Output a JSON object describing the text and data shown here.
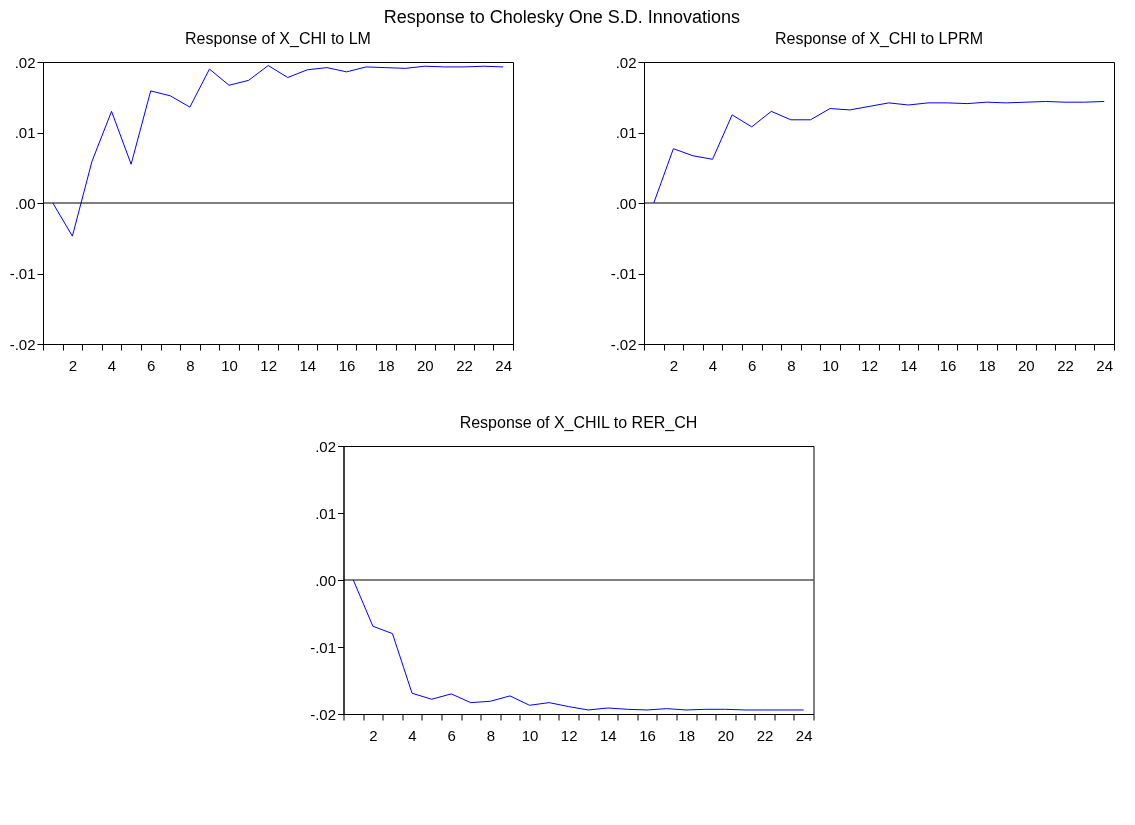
{
  "chart_data": [
    {
      "type": "line",
      "title": "Response of X_CHI to LM",
      "annotations": [
        "Response to Cholesky One S.D. Innovations"
      ],
      "x": [
        1,
        2,
        3,
        4,
        5,
        6,
        7,
        8,
        9,
        10,
        11,
        12,
        13,
        14,
        15,
        16,
        17,
        18,
        19,
        20,
        21,
        22,
        23,
        24
      ],
      "series": [
        {
          "color": "#0000ff",
          "values": [
            0,
            -0.0047,
            0.0059,
            0.013,
            0.0055,
            0.0159,
            0.0152,
            0.0136,
            0.019,
            0.0167,
            0.0174,
            0.0195,
            0.0178,
            0.0189,
            0.0192,
            0.0186,
            0.0193,
            0.0192,
            0.0191,
            0.0194,
            0.0193,
            0.0193,
            0.0194,
            0.0193
          ]
        }
      ],
      "xlim": [
        0.5,
        24.5
      ],
      "xticks": [
        {
          "value": 0.5,
          "label": null
        },
        {
          "value": 1.5,
          "label": null
        },
        2,
        {
          "value": 2.5,
          "label": null
        },
        {
          "value": 3.5,
          "label": null
        },
        4,
        {
          "value": 4.5,
          "label": null
        },
        {
          "value": 5.5,
          "label": null
        },
        6,
        {
          "value": 6.5,
          "label": null
        },
        {
          "value": 7.5,
          "label": null
        },
        8,
        {
          "value": 8.5,
          "label": null
        },
        {
          "value": 9.5,
          "label": null
        },
        10,
        {
          "value": 10.5,
          "label": null
        },
        {
          "value": 11.5,
          "label": null
        },
        12,
        {
          "value": 12.5,
          "label": null
        },
        {
          "value": 13.5,
          "label": null
        },
        14,
        {
          "value": 14.5,
          "label": null
        },
        {
          "value": 15.5,
          "label": null
        },
        16,
        {
          "value": 16.5,
          "label": null
        },
        {
          "value": 17.5,
          "label": null
        },
        18,
        {
          "value": 18.5,
          "label": null
        },
        {
          "value": 19.5,
          "label": null
        },
        20,
        {
          "value": 20.5,
          "label": null
        },
        {
          "value": 21.5,
          "label": null
        },
        22,
        {
          "value": 22.5,
          "label": null
        },
        {
          "value": 23.5,
          "label": null
        },
        24,
        {
          "value": 24.5,
          "label": null
        }
      ],
      "ylim": [
        -0.02,
        0.02
      ],
      "yticks": [
        {
          "value": -0.02,
          "label": "-.02"
        },
        {
          "value": -0.01,
          "label": "-.01"
        },
        {
          "value": 0,
          "label": ".00"
        },
        {
          "value": 0.01,
          "label": ".01"
        },
        {
          "value": 0.02,
          "label": ".02"
        }
      ],
      "ref_lines": [
        {
          "axis": "y",
          "value": 0,
          "color": "#000000"
        }
      ],
      "grid": false,
      "line_style": "solid",
      "marker": "none"
    },
    {
      "type": "line",
      "title": "Response of X_CHI to LPRM",
      "x": [
        1,
        2,
        3,
        4,
        5,
        6,
        7,
        8,
        9,
        10,
        11,
        12,
        13,
        14,
        15,
        16,
        17,
        18,
        19,
        20,
        21,
        22,
        23,
        24
      ],
      "series": [
        {
          "color": "#0000ff",
          "values": [
            0,
            0.0077,
            0.0067,
            0.0062,
            0.0125,
            0.0108,
            0.013,
            0.0118,
            0.0118,
            0.0134,
            0.0132,
            0.0137,
            0.0142,
            0.0139,
            0.0142,
            0.0142,
            0.0141,
            0.0143,
            0.0142,
            0.0143,
            0.0144,
            0.0143,
            0.0143,
            0.0144
          ]
        }
      ],
      "xlim": [
        0.5,
        24.5
      ],
      "xticks": [
        {
          "value": 0.5,
          "label": null
        },
        {
          "value": 1.5,
          "label": null
        },
        2,
        {
          "value": 2.5,
          "label": null
        },
        {
          "value": 3.5,
          "label": null
        },
        4,
        {
          "value": 4.5,
          "label": null
        },
        {
          "value": 5.5,
          "label": null
        },
        6,
        {
          "value": 6.5,
          "label": null
        },
        {
          "value": 7.5,
          "label": null
        },
        8,
        {
          "value": 8.5,
          "label": null
        },
        {
          "value": 9.5,
          "label": null
        },
        10,
        {
          "value": 10.5,
          "label": null
        },
        {
          "value": 11.5,
          "label": null
        },
        12,
        {
          "value": 12.5,
          "label": null
        },
        {
          "value": 13.5,
          "label": null
        },
        14,
        {
          "value": 14.5,
          "label": null
        },
        {
          "value": 15.5,
          "label": null
        },
        16,
        {
          "value": 16.5,
          "label": null
        },
        {
          "value": 17.5,
          "label": null
        },
        18,
        {
          "value": 18.5,
          "label": null
        },
        {
          "value": 19.5,
          "label": null
        },
        20,
        {
          "value": 20.5,
          "label": null
        },
        {
          "value": 21.5,
          "label": null
        },
        22,
        {
          "value": 22.5,
          "label": null
        },
        {
          "value": 23.5,
          "label": null
        },
        24,
        {
          "value": 24.5,
          "label": null
        }
      ],
      "ylim": [
        -0.02,
        0.02
      ],
      "yticks": [
        {
          "value": -0.02,
          "label": "-.02"
        },
        {
          "value": -0.01,
          "label": "-.01"
        },
        {
          "value": 0,
          "label": ".00"
        },
        {
          "value": 0.01,
          "label": ".01"
        },
        {
          "value": 0.02,
          "label": ".02"
        }
      ],
      "ref_lines": [
        {
          "axis": "y",
          "value": 0,
          "color": "#000000"
        }
      ],
      "grid": false,
      "line_style": "solid",
      "marker": "none"
    },
    {
      "type": "line",
      "title": "Response of X_CHIL  to RER_CH",
      "x": [
        1,
        2,
        3,
        4,
        5,
        6,
        7,
        8,
        9,
        10,
        11,
        12,
        13,
        14,
        15,
        16,
        17,
        18,
        19,
        20,
        21,
        22,
        23,
        24
      ],
      "series": [
        {
          "color": "#0000ff",
          "values": [
            0,
            -0.0069,
            -0.008,
            -0.0169,
            -0.0178,
            -0.017,
            -0.0183,
            -0.0181,
            -0.0173,
            -0.0187,
            -0.0183,
            -0.0189,
            -0.0194,
            -0.0191,
            -0.0193,
            -0.0194,
            -0.0192,
            -0.0194,
            -0.0193,
            -0.0193,
            -0.0194,
            -0.0194,
            -0.0194,
            -0.0194
          ]
        }
      ],
      "xlim": [
        0.5,
        24.5
      ],
      "xticks": [
        {
          "value": 0.5,
          "label": null
        },
        {
          "value": 1.5,
          "label": null
        },
        2,
        {
          "value": 2.5,
          "label": null
        },
        {
          "value": 3.5,
          "label": null
        },
        4,
        {
          "value": 4.5,
          "label": null
        },
        {
          "value": 5.5,
          "label": null
        },
        6,
        {
          "value": 6.5,
          "label": null
        },
        {
          "value": 7.5,
          "label": null
        },
        8,
        {
          "value": 8.5,
          "label": null
        },
        {
          "value": 9.5,
          "label": null
        },
        10,
        {
          "value": 10.5,
          "label": null
        },
        {
          "value": 11.5,
          "label": null
        },
        12,
        {
          "value": 12.5,
          "label": null
        },
        {
          "value": 13.5,
          "label": null
        },
        14,
        {
          "value": 14.5,
          "label": null
        },
        {
          "value": 15.5,
          "label": null
        },
        16,
        {
          "value": 16.5,
          "label": null
        },
        {
          "value": 17.5,
          "label": null
        },
        18,
        {
          "value": 18.5,
          "label": null
        },
        {
          "value": 19.5,
          "label": null
        },
        20,
        {
          "value": 20.5,
          "label": null
        },
        {
          "value": 21.5,
          "label": null
        },
        22,
        {
          "value": 22.5,
          "label": null
        },
        {
          "value": 23.5,
          "label": null
        },
        24,
        {
          "value": 24.5,
          "label": null
        }
      ],
      "ylim": [
        -0.02,
        0.02
      ],
      "yticks": [
        {
          "value": -0.02,
          "label": "-.02"
        },
        {
          "value": -0.01,
          "label": "-.01"
        },
        {
          "value": 0,
          "label": ".00"
        },
        {
          "value": 0.01,
          "label": ".01"
        },
        {
          "value": 0.02,
          "label": ".02"
        }
      ],
      "ref_lines": [
        {
          "axis": "y",
          "value": 0,
          "color": "#000000"
        }
      ],
      "grid": false,
      "line_style": "solid",
      "marker": "none"
    }
  ]
}
